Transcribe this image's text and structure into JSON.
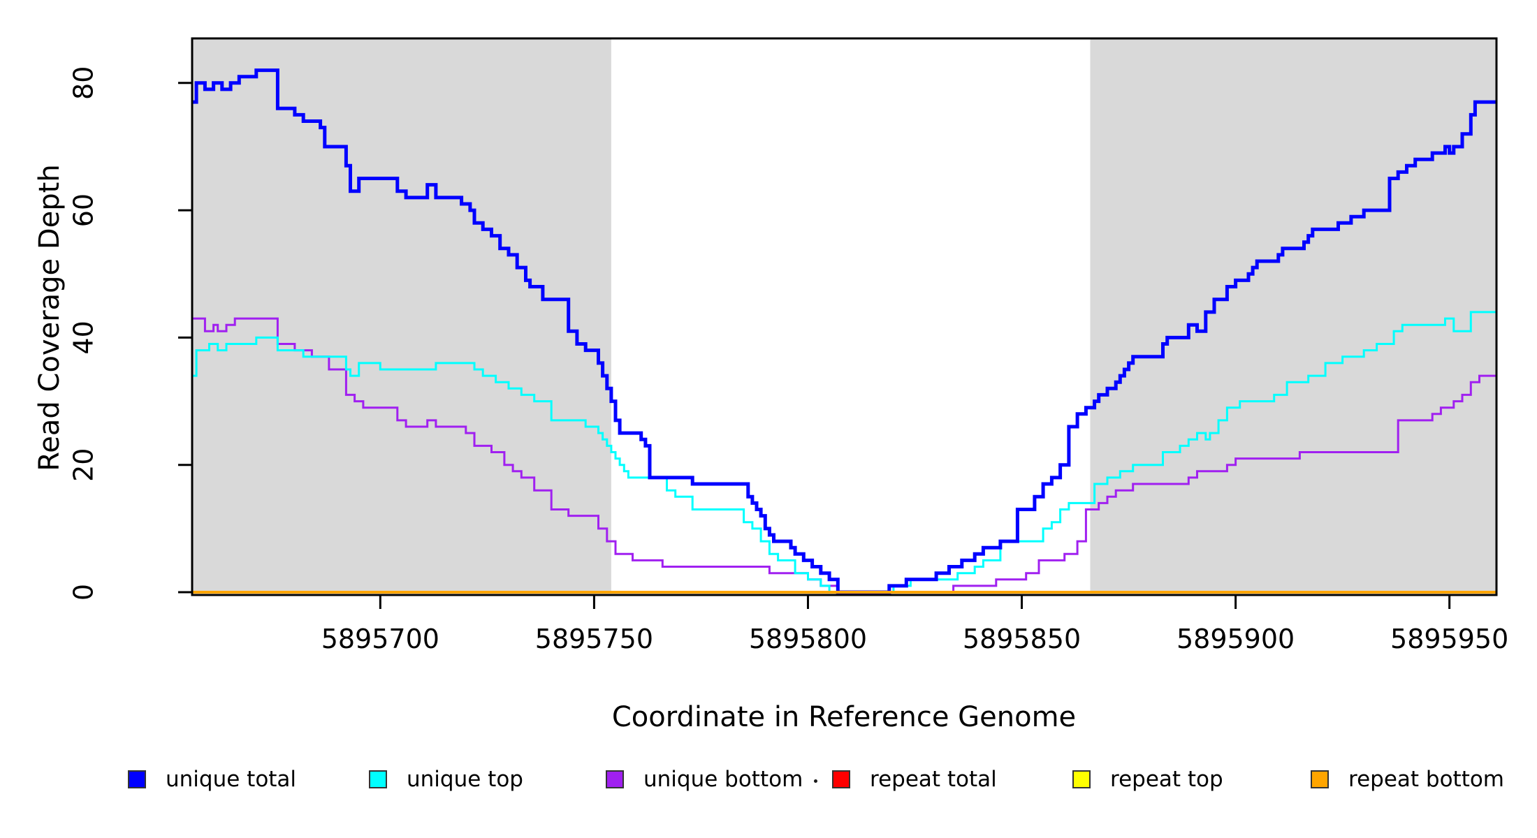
{
  "x_axis": {
    "label": "Coordinate in Reference Genome"
  },
  "y_axis": {
    "label": "Read Coverage Depth"
  },
  "chart_data": {
    "type": "line",
    "subtype": "step",
    "title": "",
    "xlabel": "Coordinate in Reference Genome",
    "ylabel": "Read Coverage Depth",
    "xlim": [
      5895656,
      5895961
    ],
    "ylim": [
      0,
      87
    ],
    "x_ticks": [
      5895700,
      5895750,
      5895800,
      5895850,
      5895900,
      5895950
    ],
    "y_ticks": [
      0,
      20,
      40,
      60,
      80
    ],
    "grid": false,
    "legend_position": "bottom",
    "shaded_regions": [
      {
        "x0": 5895656,
        "x1": 5895754,
        "color": "#D9D9D9"
      },
      {
        "x0": 5895866,
        "x1": 5895961,
        "color": "#D9D9D9"
      }
    ],
    "series": [
      {
        "name": "unique total",
        "color": "#0000FF",
        "width": 5,
        "steps": [
          [
            5895656,
            77
          ],
          [
            5895657,
            80
          ],
          [
            5895659,
            79
          ],
          [
            5895661,
            80
          ],
          [
            5895663,
            79
          ],
          [
            5895665,
            80
          ],
          [
            5895667,
            81
          ],
          [
            5895671,
            82
          ],
          [
            5895676,
            76
          ],
          [
            5895680,
            75
          ],
          [
            5895682,
            74
          ],
          [
            5895686,
            73
          ],
          [
            5895687,
            70
          ],
          [
            5895692,
            67
          ],
          [
            5895693,
            63
          ],
          [
            5895695,
            65
          ],
          [
            5895704,
            63
          ],
          [
            5895706,
            62
          ],
          [
            5895711,
            64
          ],
          [
            5895713,
            62
          ],
          [
            5895719,
            61
          ],
          [
            5895721,
            60
          ],
          [
            5895722,
            58
          ],
          [
            5895724,
            57
          ],
          [
            5895726,
            56
          ],
          [
            5895728,
            54
          ],
          [
            5895730,
            53
          ],
          [
            5895732,
            51
          ],
          [
            5895734,
            49
          ],
          [
            5895735,
            48
          ],
          [
            5895738,
            46
          ],
          [
            5895744,
            41
          ],
          [
            5895746,
            39
          ],
          [
            5895748,
            38
          ],
          [
            5895751,
            36
          ],
          [
            5895752,
            34
          ],
          [
            5895753,
            32
          ],
          [
            5895754,
            30
          ],
          [
            5895755,
            27
          ],
          [
            5895756,
            25
          ],
          [
            5895761,
            24
          ],
          [
            5895762,
            23
          ],
          [
            5895763,
            18
          ],
          [
            5895773,
            17
          ],
          [
            5895786,
            15
          ],
          [
            5895787,
            14
          ],
          [
            5895788,
            13
          ],
          [
            5895789,
            12
          ],
          [
            5895790,
            10
          ],
          [
            5895791,
            9
          ],
          [
            5895792,
            8
          ],
          [
            5895796,
            7
          ],
          [
            5895797,
            6
          ],
          [
            5895799,
            5
          ],
          [
            5895801,
            4
          ],
          [
            5895803,
            3
          ],
          [
            5895805,
            2
          ],
          [
            5895807,
            0
          ],
          [
            5895819,
            1
          ],
          [
            5895823,
            2
          ],
          [
            5895830,
            3
          ],
          [
            5895833,
            4
          ],
          [
            5895836,
            5
          ],
          [
            5895839,
            6
          ],
          [
            5895841,
            7
          ],
          [
            5895845,
            8
          ],
          [
            5895849,
            13
          ],
          [
            5895853,
            15
          ],
          [
            5895855,
            17
          ],
          [
            5895857,
            18
          ],
          [
            5895859,
            20
          ],
          [
            5895861,
            26
          ],
          [
            5895863,
            28
          ],
          [
            5895865,
            29
          ],
          [
            5895867,
            30
          ],
          [
            5895868,
            31
          ],
          [
            5895870,
            32
          ],
          [
            5895872,
            33
          ],
          [
            5895873,
            34
          ],
          [
            5895874,
            35
          ],
          [
            5895875,
            36
          ],
          [
            5895876,
            37
          ],
          [
            5895883,
            39
          ],
          [
            5895884,
            40
          ],
          [
            5895889,
            42
          ],
          [
            5895891,
            41
          ],
          [
            5895893,
            44
          ],
          [
            5895895,
            46
          ],
          [
            5895898,
            48
          ],
          [
            5895900,
            49
          ],
          [
            5895903,
            50
          ],
          [
            5895904,
            51
          ],
          [
            5895905,
            52
          ],
          [
            5895910,
            53
          ],
          [
            5895911,
            54
          ],
          [
            5895916,
            55
          ],
          [
            5895917,
            56
          ],
          [
            5895918,
            57
          ],
          [
            5895924,
            58
          ],
          [
            5895927,
            59
          ],
          [
            5895930,
            60
          ],
          [
            5895936,
            65
          ],
          [
            5895938,
            66
          ],
          [
            5895940,
            67
          ],
          [
            5895942,
            68
          ],
          [
            5895946,
            69
          ],
          [
            5895949,
            70
          ],
          [
            5895950,
            69
          ],
          [
            5895951,
            70
          ],
          [
            5895953,
            72
          ],
          [
            5895955,
            75
          ],
          [
            5895956,
            77
          ]
        ]
      },
      {
        "name": "unique top",
        "color": "#00FFFF",
        "width": 3,
        "steps": [
          [
            5895656,
            34
          ],
          [
            5895657,
            38
          ],
          [
            5895660,
            39
          ],
          [
            5895662,
            38
          ],
          [
            5895664,
            39
          ],
          [
            5895671,
            40
          ],
          [
            5895676,
            38
          ],
          [
            5895682,
            37
          ],
          [
            5895692,
            35
          ],
          [
            5895693,
            34
          ],
          [
            5895695,
            36
          ],
          [
            5895700,
            35
          ],
          [
            5895713,
            36
          ],
          [
            5895722,
            35
          ],
          [
            5895724,
            34
          ],
          [
            5895727,
            33
          ],
          [
            5895730,
            32
          ],
          [
            5895733,
            31
          ],
          [
            5895736,
            30
          ],
          [
            5895740,
            27
          ],
          [
            5895748,
            26
          ],
          [
            5895751,
            25
          ],
          [
            5895752,
            24
          ],
          [
            5895753,
            23
          ],
          [
            5895754,
            22
          ],
          [
            5895755,
            21
          ],
          [
            5895756,
            20
          ],
          [
            5895757,
            19
          ],
          [
            5895758,
            18
          ],
          [
            5895767,
            16
          ],
          [
            5895769,
            15
          ],
          [
            5895773,
            13
          ],
          [
            5895785,
            11
          ],
          [
            5895787,
            10
          ],
          [
            5895789,
            8
          ],
          [
            5895791,
            6
          ],
          [
            5895793,
            5
          ],
          [
            5895797,
            3
          ],
          [
            5895800,
            2
          ],
          [
            5895803,
            1
          ],
          [
            5895805,
            0
          ],
          [
            5895820,
            1
          ],
          [
            5895824,
            2
          ],
          [
            5895835,
            3
          ],
          [
            5895839,
            4
          ],
          [
            5895841,
            5
          ],
          [
            5895845,
            8
          ],
          [
            5895855,
            10
          ],
          [
            5895857,
            11
          ],
          [
            5895859,
            13
          ],
          [
            5895861,
            14
          ],
          [
            5895867,
            17
          ],
          [
            5895870,
            18
          ],
          [
            5895873,
            19
          ],
          [
            5895876,
            20
          ],
          [
            5895883,
            22
          ],
          [
            5895887,
            23
          ],
          [
            5895889,
            24
          ],
          [
            5895891,
            25
          ],
          [
            5895893,
            24
          ],
          [
            5895894,
            25
          ],
          [
            5895896,
            27
          ],
          [
            5895898,
            29
          ],
          [
            5895901,
            30
          ],
          [
            5895909,
            31
          ],
          [
            5895912,
            33
          ],
          [
            5895917,
            34
          ],
          [
            5895921,
            36
          ],
          [
            5895925,
            37
          ],
          [
            5895930,
            38
          ],
          [
            5895933,
            39
          ],
          [
            5895937,
            41
          ],
          [
            5895939,
            42
          ],
          [
            5895949,
            43
          ],
          [
            5895951,
            41
          ],
          [
            5895955,
            44
          ]
        ]
      },
      {
        "name": "unique bottom",
        "color": "#A020F0",
        "width": 3,
        "steps": [
          [
            5895656,
            43
          ],
          [
            5895659,
            41
          ],
          [
            5895661,
            42
          ],
          [
            5895662,
            41
          ],
          [
            5895664,
            42
          ],
          [
            5895666,
            43
          ],
          [
            5895676,
            39
          ],
          [
            5895680,
            38
          ],
          [
            5895684,
            37
          ],
          [
            5895688,
            35
          ],
          [
            5895692,
            31
          ],
          [
            5895694,
            30
          ],
          [
            5895696,
            29
          ],
          [
            5895704,
            27
          ],
          [
            5895706,
            26
          ],
          [
            5895711,
            27
          ],
          [
            5895713,
            26
          ],
          [
            5895720,
            25
          ],
          [
            5895722,
            23
          ],
          [
            5895726,
            22
          ],
          [
            5895729,
            20
          ],
          [
            5895731,
            19
          ],
          [
            5895733,
            18
          ],
          [
            5895736,
            16
          ],
          [
            5895740,
            13
          ],
          [
            5895744,
            12
          ],
          [
            5895751,
            10
          ],
          [
            5895753,
            8
          ],
          [
            5895755,
            6
          ],
          [
            5895759,
            5
          ],
          [
            5895766,
            4
          ],
          [
            5895791,
            3
          ],
          [
            5895800,
            2
          ],
          [
            5895803,
            1
          ],
          [
            5895807,
            0
          ],
          [
            5895834,
            1
          ],
          [
            5895844,
            2
          ],
          [
            5895851,
            3
          ],
          [
            5895854,
            5
          ],
          [
            5895860,
            6
          ],
          [
            5895863,
            8
          ],
          [
            5895865,
            13
          ],
          [
            5895868,
            14
          ],
          [
            5895870,
            15
          ],
          [
            5895872,
            16
          ],
          [
            5895876,
            17
          ],
          [
            5895889,
            18
          ],
          [
            5895891,
            19
          ],
          [
            5895898,
            20
          ],
          [
            5895900,
            21
          ],
          [
            5895915,
            22
          ],
          [
            5895938,
            27
          ],
          [
            5895946,
            28
          ],
          [
            5895948,
            29
          ],
          [
            5895951,
            30
          ],
          [
            5895953,
            31
          ],
          [
            5895955,
            33
          ],
          [
            5895957,
            34
          ]
        ]
      },
      {
        "name": "repeat total",
        "color": "#FF0000",
        "width": 3,
        "steps": [
          [
            5895656,
            0
          ]
        ]
      },
      {
        "name": "repeat top",
        "color": "#FFFF00",
        "width": 3,
        "steps": [
          [
            5895656,
            0
          ]
        ]
      },
      {
        "name": "repeat bottom",
        "color": "#FFA500",
        "width": 4,
        "steps": [
          [
            5895656,
            0
          ]
        ]
      }
    ]
  }
}
